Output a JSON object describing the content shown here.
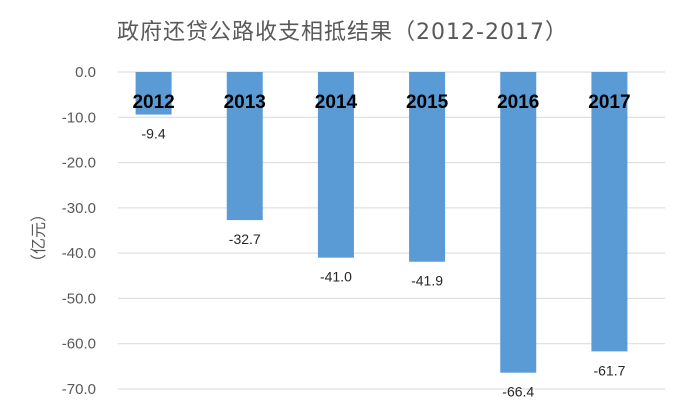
{
  "chart_data": {
    "type": "bar",
    "title": "政府还贷公路收支相抵结果（2012-2017）",
    "xlabel": "",
    "ylabel": "（亿元）",
    "categories": [
      "2012",
      "2013",
      "2014",
      "2015",
      "2016",
      "2017"
    ],
    "values": [
      -9.4,
      -32.7,
      -41.0,
      -41.9,
      -66.4,
      -61.7
    ],
    "value_labels": [
      "-9.4",
      "-32.7",
      "-41.0",
      "-41.9",
      "-66.4",
      "-61.7"
    ],
    "ylim": [
      -70,
      0
    ],
    "yticks": [
      0,
      -10,
      -20,
      -30,
      -40,
      -50,
      -60,
      -70
    ],
    "ytick_labels": [
      "0.0",
      "-10.0",
      "-20.0",
      "-30.0",
      "-40.0",
      "-50.0",
      "-60.0",
      "-70.0"
    ],
    "grid": true,
    "legend": "none",
    "bar_color": "#5B9BD5",
    "grid_color": "#D9D9D9"
  }
}
